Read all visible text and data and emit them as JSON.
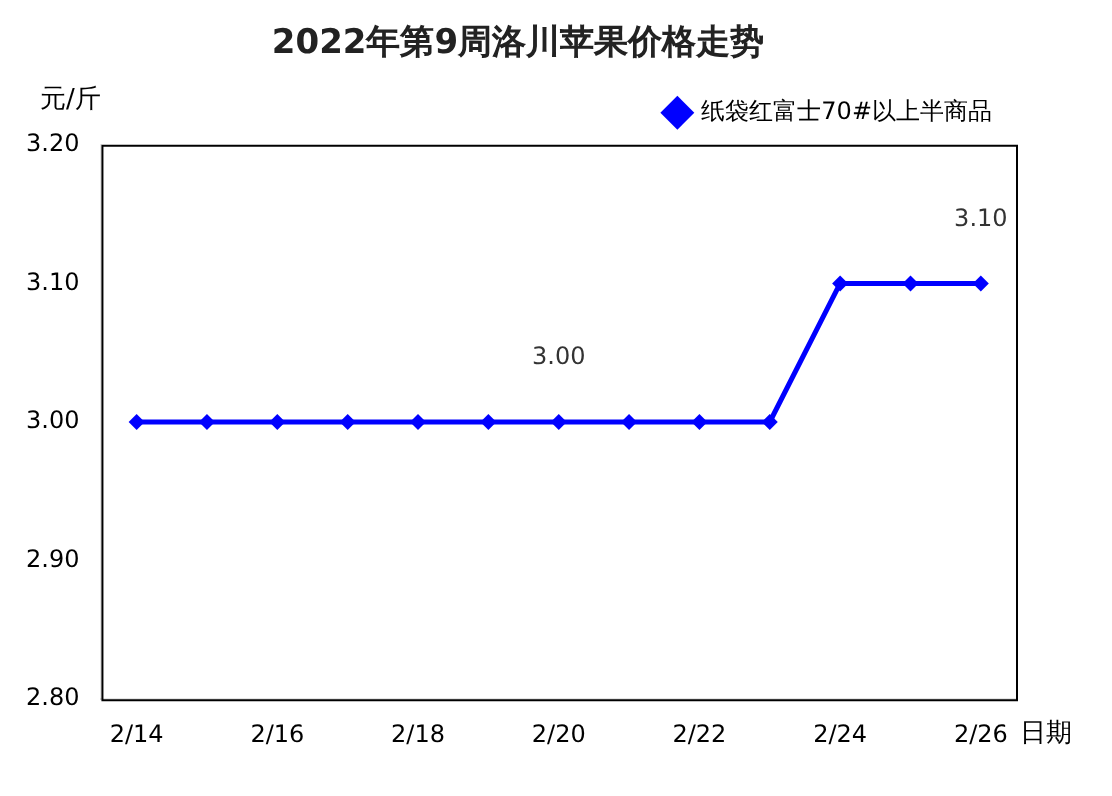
{
  "chart_data": {
    "type": "line",
    "title": "2022年第9周洛川苹果价格走势",
    "ylabel": "元/斤",
    "xlabel": "日期",
    "categories": [
      "2/14",
      null,
      "2/16",
      null,
      "2/18",
      null,
      "2/20",
      null,
      "2/22",
      null,
      "2/24",
      null,
      "2/26"
    ],
    "series": [
      {
        "name": "纸袋红富士70#以上半商品",
        "color": "#0000ff",
        "values": [
          3.0,
          3.0,
          3.0,
          3.0,
          3.0,
          3.0,
          3.0,
          3.0,
          3.0,
          3.0,
          3.1,
          3.1,
          3.1
        ]
      }
    ],
    "ylim": [
      2.8,
      3.2
    ],
    "yticks": [
      {
        "value": 2.8,
        "label": "2.80"
      },
      {
        "value": 2.9,
        "label": "2.90"
      },
      {
        "value": 3.0,
        "label": "3.00"
      },
      {
        "value": 3.1,
        "label": "3.10"
      },
      {
        "value": 3.2,
        "label": "3.20"
      }
    ],
    "annotations": [
      {
        "text": "3.00",
        "x": "2/20",
        "y": 3.0
      },
      {
        "text": "3.10",
        "x": "2/26",
        "y": 3.1
      }
    ],
    "legend": "top right",
    "marker": "diamond",
    "line_style": "solid"
  }
}
